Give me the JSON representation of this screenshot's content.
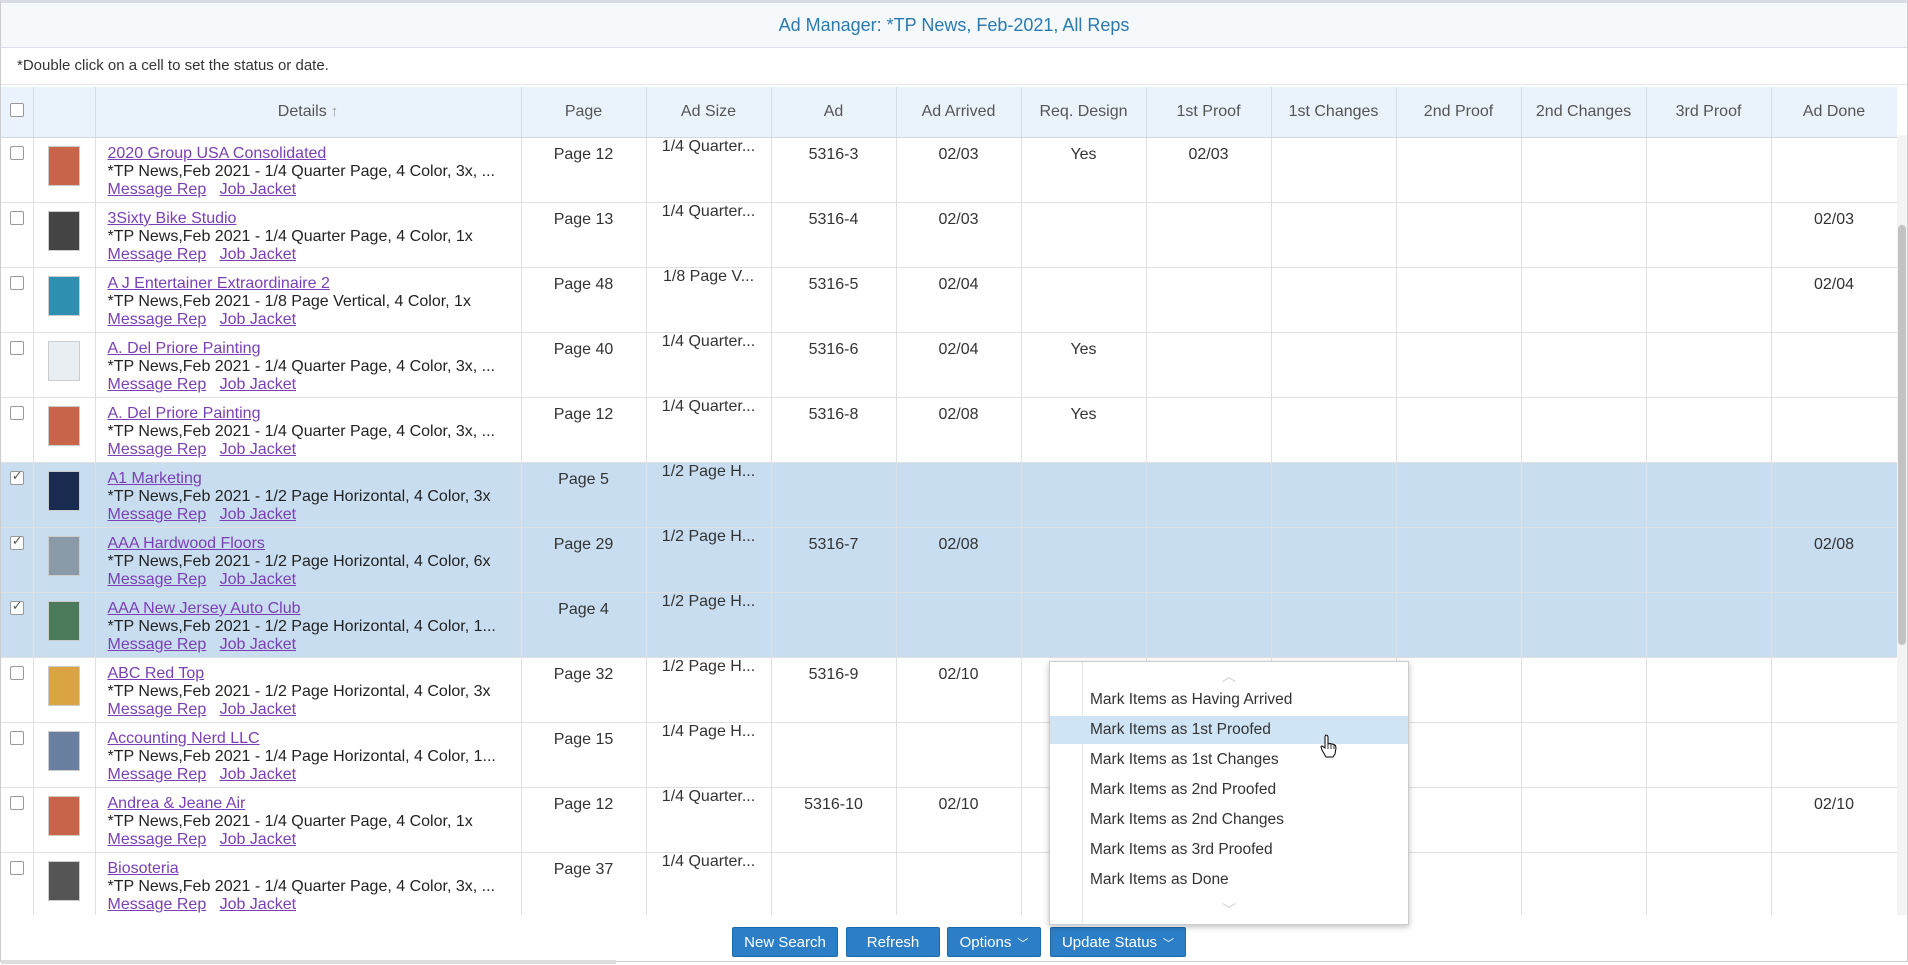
{
  "title": "Ad Manager: *TP News, Feb-2021, All Reps",
  "hint": "*Double click on a cell to set the status or date.",
  "columns": {
    "details": "Details",
    "page": "Page",
    "ad_size": "Ad Size",
    "ad": "Ad",
    "ad_arrived": "Ad Arrived",
    "req_design": "Req. Design",
    "first_proof": "1st Proof",
    "first_changes": "1st Changes",
    "second_proof": "2nd Proof",
    "second_changes": "2nd Changes",
    "third_proof": "3rd Proof",
    "ad_done": "Ad Done"
  },
  "links": {
    "message_rep": "Message Rep",
    "job_jacket": "Job Jacket"
  },
  "rows": [
    {
      "name": "2020 Group USA Consolidated",
      "desc": "*TP News,Feb 2021 - 1/4 Quarter Page, 4 Color, 3x, ...",
      "page": "Page 12",
      "size": "1/4 Quarter...",
      "ad": "5316-3",
      "arrived": "02/03",
      "design": "Yes",
      "p1": "02/03",
      "c1": "",
      "p2": "",
      "c2": "",
      "p3": "",
      "done": "",
      "checked": false,
      "thumb": "#c8644a"
    },
    {
      "name": "3Sixty Bike Studio",
      "desc": "*TP News,Feb 2021 - 1/4 Quarter Page, 4 Color, 1x",
      "page": "Page 13",
      "size": "1/4 Quarter...",
      "ad": "5316-4",
      "arrived": "02/03",
      "design": "",
      "p1": "",
      "c1": "",
      "p2": "",
      "c2": "",
      "p3": "",
      "done": "02/03",
      "checked": false,
      "thumb": "#444"
    },
    {
      "name": "A J Entertainer Extraordinaire 2",
      "desc": "*TP News,Feb 2021 - 1/8 Page Vertical, 4 Color, 1x",
      "page": "Page 48",
      "size": "1/8 Page V...",
      "ad": "5316-5",
      "arrived": "02/04",
      "design": "",
      "p1": "",
      "c1": "",
      "p2": "",
      "c2": "",
      "p3": "",
      "done": "02/04",
      "checked": false,
      "thumb": "#2f8fb0"
    },
    {
      "name": "A. Del Priore Painting",
      "desc": "*TP News,Feb 2021 - 1/4 Quarter Page, 4 Color, 3x, ...",
      "page": "Page 40",
      "size": "1/4 Quarter...",
      "ad": "5316-6",
      "arrived": "02/04",
      "design": "Yes",
      "p1": "",
      "c1": "",
      "p2": "",
      "c2": "",
      "p3": "",
      "done": "",
      "checked": false,
      "thumb": "#e8eef2"
    },
    {
      "name": "A. Del Priore Painting",
      "desc": "*TP News,Feb 2021 - 1/4 Quarter Page, 4 Color, 3x, ...",
      "page": "Page 12",
      "size": "1/4 Quarter...",
      "ad": "5316-8",
      "arrived": "02/08",
      "design": "Yes",
      "p1": "",
      "c1": "",
      "p2": "",
      "c2": "",
      "p3": "",
      "done": "",
      "checked": false,
      "thumb": "#c8644a"
    },
    {
      "name": "A1 Marketing",
      "desc": "*TP News,Feb 2021 - 1/2 Page Horizontal, 4 Color, 3x",
      "page": "Page 5",
      "size": "1/2 Page H...",
      "ad": "",
      "arrived": "",
      "design": "",
      "p1": "",
      "c1": "",
      "p2": "",
      "c2": "",
      "p3": "",
      "done": "",
      "checked": true,
      "thumb": "#1a2b50"
    },
    {
      "name": "AAA Hardwood Floors",
      "desc": "*TP News,Feb 2021 - 1/2 Page Horizontal, 4 Color, 6x",
      "page": "Page 29",
      "size": "1/2 Page H...",
      "ad": "5316-7",
      "arrived": "02/08",
      "design": "",
      "p1": "",
      "c1": "",
      "p2": "",
      "c2": "",
      "p3": "",
      "done": "02/08",
      "checked": true,
      "thumb": "#8a9aa8"
    },
    {
      "name": "AAA New Jersey Auto Club",
      "desc": "*TP News,Feb 2021 - 1/2 Page Horizontal, 4 Color, 1...",
      "page": "Page 4",
      "size": "1/2 Page H...",
      "ad": "",
      "arrived": "",
      "design": "",
      "p1": "",
      "c1": "",
      "p2": "",
      "c2": "",
      "p3": "",
      "done": "",
      "checked": true,
      "thumb": "#4a7a5a"
    },
    {
      "name": "ABC Red Top",
      "desc": "*TP News,Feb 2021 - 1/2 Page Horizontal, 4 Color, 3x",
      "page": "Page 32",
      "size": "1/2 Page H...",
      "ad": "5316-9",
      "arrived": "02/10",
      "design": "",
      "p1": "",
      "c1": "",
      "p2": "",
      "c2": "",
      "p3": "",
      "done": "",
      "checked": false,
      "thumb": "#d9a441"
    },
    {
      "name": "Accounting Nerd LLC",
      "desc": "*TP News,Feb 2021 - 1/4 Page Horizontal, 4 Color, 1...",
      "page": "Page 15",
      "size": "1/4 Page H...",
      "ad": "",
      "arrived": "",
      "design": "",
      "p1": "",
      "c1": "",
      "p2": "",
      "c2": "",
      "p3": "",
      "done": "",
      "checked": false,
      "thumb": "#6a7fa0"
    },
    {
      "name": "Andrea & Jeane Air",
      "desc": "*TP News,Feb 2021 - 1/4 Quarter Page, 4 Color, 1x",
      "page": "Page 12",
      "size": "1/4 Quarter...",
      "ad": "5316-10",
      "arrived": "02/10",
      "design": "",
      "p1": "",
      "c1": "",
      "p2": "",
      "c2": "",
      "p3": "",
      "done": "02/10",
      "checked": false,
      "thumb": "#c8644a"
    },
    {
      "name": "Biosoteria",
      "desc": "*TP News,Feb 2021 - 1/4 Quarter Page, 4 Color, 3x, ...",
      "page": "Page 37",
      "size": "1/4 Quarter...",
      "ad": "",
      "arrived": "",
      "design": "",
      "p1": "",
      "c1": "",
      "p2": "",
      "c2": "",
      "p3": "",
      "done": "",
      "checked": false,
      "thumb": "#555"
    }
  ],
  "menu": {
    "items": [
      "Mark Items as Having Arrived",
      "Mark Items as 1st Proofed",
      "Mark Items as 1st Changes",
      "Mark Items as 2nd Proofed",
      "Mark Items as 2nd Changes",
      "Mark Items as 3rd Proofed",
      "Mark Items as Done"
    ],
    "hover_index": 1
  },
  "buttons": {
    "new_search": "New Search",
    "refresh": "Refresh",
    "options": "Options",
    "update_status": "Update Status"
  }
}
